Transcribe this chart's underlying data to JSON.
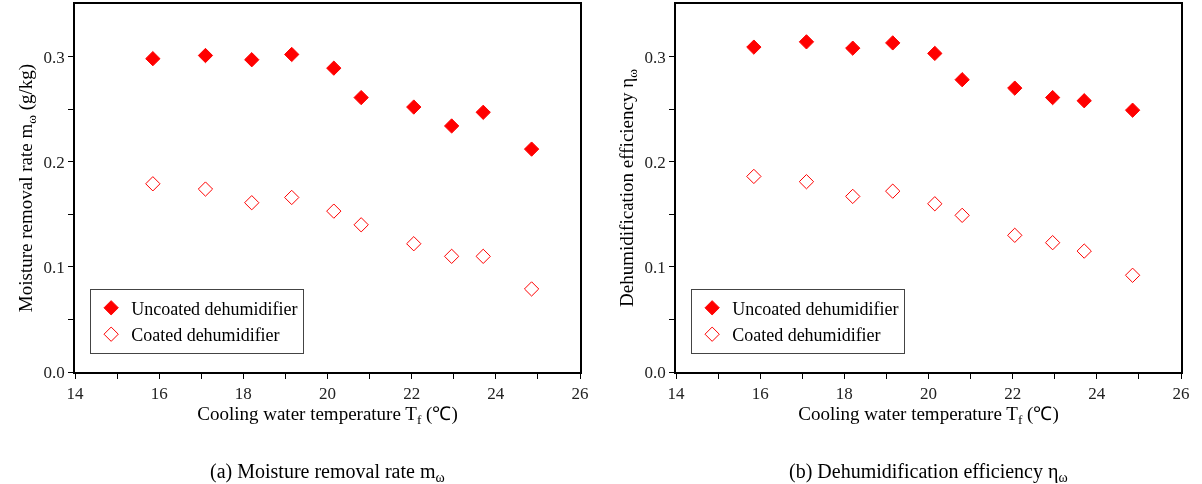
{
  "chart_data": [
    {
      "type": "scatter",
      "title": "(a) Moisture removal rate m$_{ω}$",
      "xlabel": "Cooling water temperature T$_{f}$ (℃)",
      "ylabel": "Moisture removal rate m$_{ω}$ (g/kg)",
      "x": [
        15.85,
        17.1,
        18.2,
        19.15,
        20.15,
        20.8,
        22.05,
        22.95,
        23.7,
        24.85
      ],
      "series": [
        {
          "name": "Uncoated dehumidifier",
          "color": "#ff0000",
          "marker": "diamond",
          "values": [
            0.298,
            0.301,
            0.297,
            0.302,
            0.289,
            0.261,
            0.252,
            0.234,
            0.247,
            0.212
          ]
        },
        {
          "name": "Coated dehumidifier",
          "color": "#ff0000",
          "marker": "diamond-open",
          "values": [
            0.179,
            0.174,
            0.161,
            0.166,
            0.153,
            0.14,
            0.122,
            0.11,
            0.11,
            0.079
          ]
        }
      ],
      "xlim": [
        14,
        26
      ],
      "xticks": [
        14,
        {
          "value": 15,
          "label": null
        },
        16,
        {
          "value": 17,
          "label": null
        },
        18,
        {
          "value": 19,
          "label": null
        },
        20,
        {
          "value": 21,
          "label": null
        },
        22,
        {
          "value": 23,
          "label": null
        },
        24,
        {
          "value": 25,
          "label": null
        },
        26
      ],
      "ylim": [
        0,
        0.35
      ],
      "yticks": [
        {
          "value": 0,
          "label": "0.0"
        },
        {
          "value": 0.05,
          "label": null
        },
        0.1,
        {
          "value": 0.15,
          "label": null
        },
        0.2,
        {
          "value": 0.25,
          "label": null
        },
        0.3
      ],
      "grid": false,
      "legend": "bottom left"
    },
    {
      "type": "scatter",
      "title": "(b) Dehumidification efficiency η$_{ω}$",
      "xlabel": "Cooling water temperature T$_{f}$ (℃)",
      "ylabel": "Dehumidification efficiency η$_{ω}$",
      "x": [
        15.85,
        17.1,
        18.2,
        19.15,
        20.15,
        20.8,
        22.05,
        22.95,
        23.7,
        24.85
      ],
      "series": [
        {
          "name": "Uncoated dehumidifier",
          "color": "#ff0000",
          "marker": "diamond",
          "values": [
            0.309,
            0.314,
            0.308,
            0.313,
            0.303,
            0.278,
            0.27,
            0.261,
            0.258,
            0.249
          ]
        },
        {
          "name": "Coated dehumidifier",
          "color": "#ff0000",
          "marker": "diamond-open",
          "values": [
            0.186,
            0.181,
            0.167,
            0.172,
            0.16,
            0.149,
            0.13,
            0.123,
            0.115,
            0.092
          ]
        }
      ],
      "xlim": [
        14,
        26
      ],
      "xticks": [
        14,
        {
          "value": 15,
          "label": null
        },
        16,
        {
          "value": 17,
          "label": null
        },
        18,
        {
          "value": 19,
          "label": null
        },
        20,
        {
          "value": 21,
          "label": null
        },
        22,
        {
          "value": 23,
          "label": null
        },
        24,
        {
          "value": 25,
          "label": null
        },
        26
      ],
      "ylim": [
        0,
        0.35
      ],
      "yticks": [
        {
          "value": 0,
          "label": "0.0"
        },
        {
          "value": 0.05,
          "label": null
        },
        0.1,
        {
          "value": 0.15,
          "label": null
        },
        0.2,
        {
          "value": 0.25,
          "label": null
        },
        0.3
      ],
      "grid": false,
      "legend": "bottom left"
    }
  ]
}
